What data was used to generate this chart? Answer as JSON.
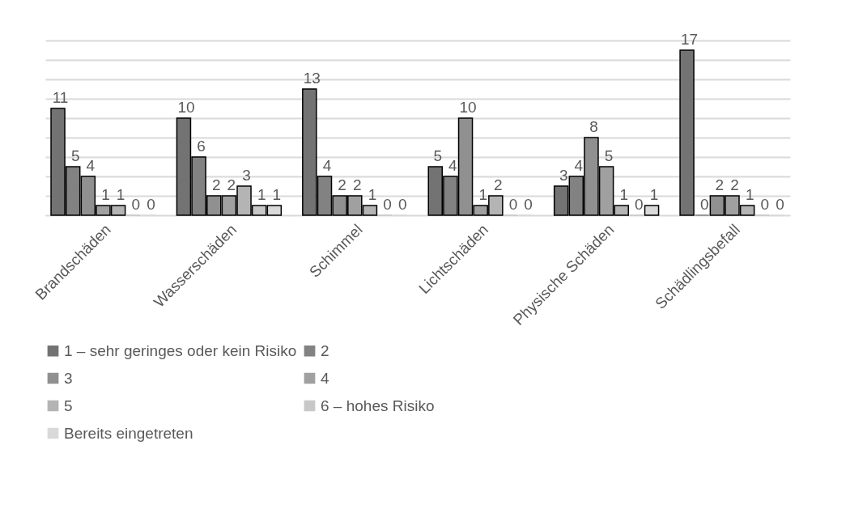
{
  "chart_data": {
    "type": "bar",
    "categories": [
      "Brandschäden",
      "Wasserschäden",
      "Schimmel",
      "Lichtschäden",
      "Physische Schäden",
      "Schädlingsbefall"
    ],
    "series": [
      {
        "name": "1 – sehr geringes oder kein Risiko",
        "color": "#737373",
        "values": [
          11,
          10,
          13,
          5,
          3,
          17
        ]
      },
      {
        "name": "2",
        "color": "#828282",
        "values": [
          5,
          6,
          4,
          4,
          4,
          0
        ]
      },
      {
        "name": "3",
        "color": "#909090",
        "values": [
          4,
          2,
          2,
          10,
          8,
          2
        ]
      },
      {
        "name": "4",
        "color": "#a0a0a0",
        "values": [
          1,
          2,
          2,
          1,
          5,
          2
        ]
      },
      {
        "name": "5",
        "color": "#b4b4b4",
        "values": [
          1,
          3,
          1,
          2,
          1,
          1
        ]
      },
      {
        "name": "6 – hohes Risiko",
        "color": "#c8c8c8",
        "values": [
          0,
          1,
          0,
          0,
          0,
          0
        ]
      },
      {
        "name": "Bereits eingetreten",
        "color": "#d9d9d9",
        "values": [
          0,
          1,
          0,
          0,
          1,
          0
        ]
      }
    ],
    "grid": "y",
    "data_labels": true,
    "legend": "bottom",
    "tick_labels": "x"
  }
}
